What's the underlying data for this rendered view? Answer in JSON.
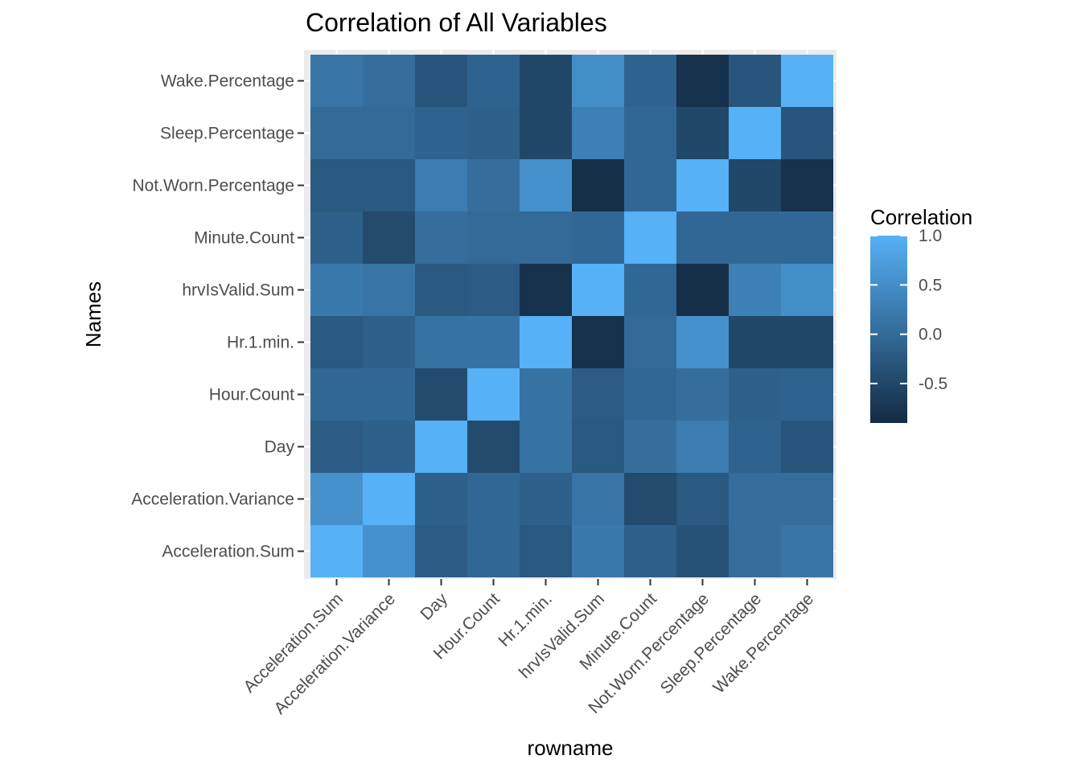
{
  "chart_data": {
    "type": "heatmap",
    "title": "Correlation of All Variables",
    "xlabel": "rowname",
    "ylabel": "Names",
    "x_categories": [
      "Acceleration.Sum",
      "Acceleration.Variance",
      "Day",
      "Hour.Count",
      "Hr.1.min.",
      "hrvIsValid.Sum",
      "Minute.Count",
      "Not.Worn.Percentage",
      "Sleep.Percentage",
      "Wake.Percentage"
    ],
    "y_categories": [
      "Acceleration.Sum",
      "Acceleration.Variance",
      "Day",
      "Hour.Count",
      "Hr.1.min.",
      "hrvIsValid.Sum",
      "Minute.Count",
      "Not.Worn.Percentage",
      "Sleep.Percentage",
      "Wake.Percentage"
    ],
    "values": [
      [
        1.0,
        0.55,
        -0.2,
        -0.05,
        -0.25,
        0.2,
        -0.15,
        -0.35,
        0.05,
        0.15
      ],
      [
        0.55,
        1.0,
        -0.15,
        -0.05,
        -0.15,
        0.15,
        -0.45,
        -0.25,
        0.05,
        0.05
      ],
      [
        -0.2,
        -0.15,
        1.0,
        -0.45,
        0.1,
        -0.25,
        0.05,
        0.25,
        -0.1,
        -0.3
      ],
      [
        -0.05,
        -0.05,
        -0.45,
        1.0,
        0.1,
        -0.2,
        -0.05,
        0.05,
        -0.15,
        -0.1
      ],
      [
        -0.25,
        -0.15,
        0.1,
        0.1,
        1.0,
        -0.8,
        0.0,
        0.55,
        -0.5,
        -0.5
      ],
      [
        0.2,
        0.15,
        -0.25,
        -0.2,
        -0.8,
        1.0,
        -0.05,
        -0.85,
        0.3,
        0.5
      ],
      [
        -0.15,
        -0.45,
        0.05,
        0.0,
        0.0,
        -0.05,
        1.0,
        -0.05,
        -0.05,
        -0.05
      ],
      [
        -0.25,
        -0.25,
        0.25,
        0.05,
        0.55,
        -0.85,
        -0.05,
        1.0,
        -0.5,
        -0.8
      ],
      [
        0.0,
        0.0,
        -0.1,
        -0.15,
        -0.5,
        0.3,
        -0.05,
        -0.5,
        1.0,
        -0.3
      ],
      [
        0.15,
        0.05,
        -0.3,
        -0.1,
        -0.5,
        0.5,
        -0.1,
        -0.8,
        -0.3,
        1.0
      ]
    ],
    "legend": {
      "title": "Correlation",
      "position": "right",
      "ticks": [
        1.0,
        0.5,
        0.0,
        -0.5
      ],
      "tick_labels": [
        "1.0",
        "0.5",
        "0.0",
        "-0.5"
      ],
      "range": [
        -0.9,
        1.0
      ],
      "low_color": "#132B43",
      "high_color": "#56B1F7"
    },
    "panel_background": "#EBEBEB",
    "grid": true
  }
}
